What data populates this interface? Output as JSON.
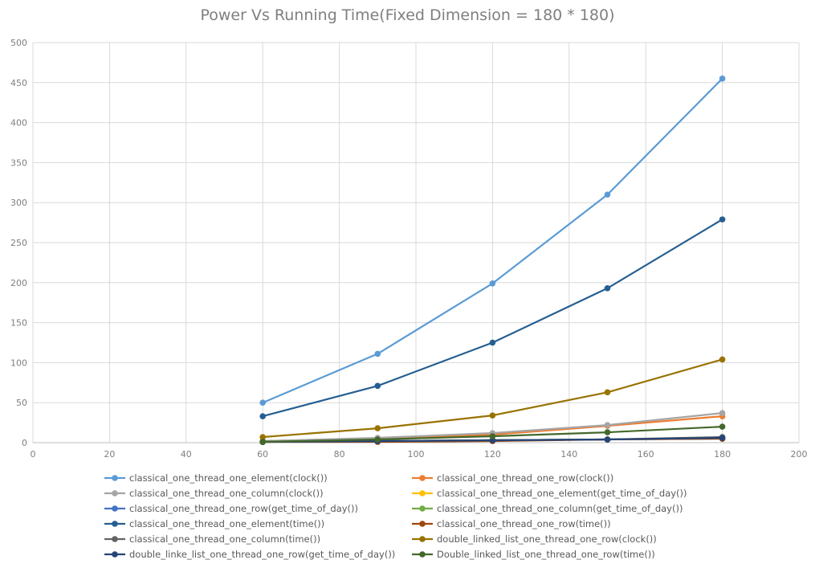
{
  "chart_data": {
    "type": "line",
    "title": "Power Vs Running Time(Fixed Dimension = 180 * 180)",
    "xlim": [
      0,
      200
    ],
    "ylim": [
      0,
      500
    ],
    "x_ticks": [
      0,
      20,
      40,
      60,
      80,
      100,
      120,
      140,
      160,
      180,
      200
    ],
    "y_ticks": [
      0,
      50,
      100,
      150,
      200,
      250,
      300,
      350,
      400,
      450,
      500
    ],
    "grid": true,
    "legend_position": "bottom",
    "x": [
      60,
      90,
      120,
      150,
      180
    ],
    "series": [
      {
        "name": "classical_one_thread_one_element(clock())",
        "color": "#5b9bd5",
        "values": [
          50,
          111,
          199,
          310,
          455
        ]
      },
      {
        "name": "classical_one_thread_one_row(clock())",
        "color": "#ed7d31",
        "values": [
          2,
          5,
          10,
          21,
          33
        ]
      },
      {
        "name": "classical_one_thread_one_column(clock())",
        "color": "#a5a5a5",
        "values": [
          2,
          6,
          12,
          22,
          37
        ]
      },
      {
        "name": "classical_one_thread_one_element(get_time_of_day())",
        "color": "#ffc000",
        "values": [
          1,
          2,
          3,
          4,
          5
        ]
      },
      {
        "name": "classical_one_thread_one_row(get_time_of_day())",
        "color": "#4472c4",
        "values": [
          1,
          2,
          3,
          4,
          5
        ]
      },
      {
        "name": "classical_one_thread_one_column(get_time_of_day())",
        "color": "#70ad47",
        "values": [
          1,
          2,
          3,
          4,
          6
        ]
      },
      {
        "name": "classical_one_thread_one_element(time())",
        "color": "#255e91",
        "values": [
          33,
          71,
          125,
          193,
          279
        ]
      },
      {
        "name": "classical_one_thread_one_row(time())",
        "color": "#9e480e",
        "values": [
          1,
          1,
          2,
          4,
          5
        ]
      },
      {
        "name": "classical_one_thread_one_column(time())",
        "color": "#636363",
        "values": [
          1,
          2,
          3,
          4,
          7
        ]
      },
      {
        "name": "double_linked_list_one_thread_one_row(clock())",
        "color": "#997300",
        "values": [
          7,
          18,
          34,
          63,
          104
        ]
      },
      {
        "name": "double_linke_list_one_thread_one_row(get_time_of_day())",
        "color": "#264478",
        "values": [
          1,
          2,
          3,
          4,
          6
        ]
      },
      {
        "name": "Double_linked_list_one_thread_one_row(time())",
        "color": "#43682b",
        "values": [
          1,
          4,
          8,
          13,
          20
        ]
      }
    ]
  }
}
